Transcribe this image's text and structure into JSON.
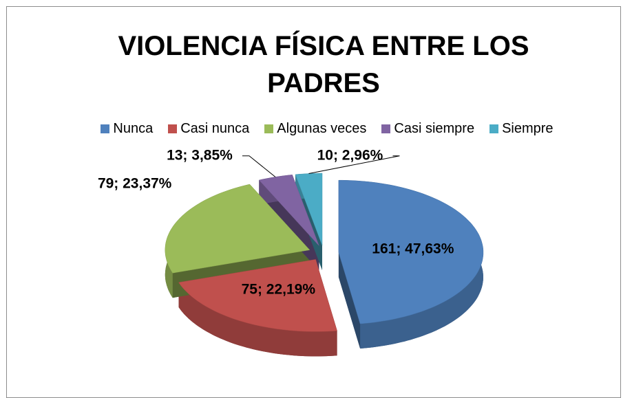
{
  "chart_data": {
    "type": "pie",
    "title": "VIOLENCIA FÍSICA ENTRE LOS PADRES",
    "categories": [
      "Nunca",
      "Casi nunca",
      "Algunas veces",
      "Casi siempre",
      "Siempre"
    ],
    "values": [
      161,
      75,
      79,
      13,
      10
    ],
    "value_labels": [
      "161; 47,63%",
      "75; 22,19%",
      "79; 23,37%",
      "13; 3,85%",
      "10; 2,96%"
    ],
    "colors": [
      "#4f81bd",
      "#c0504d",
      "#9bbb59",
      "#8064a2",
      "#4bacc6"
    ],
    "legend": "top"
  }
}
